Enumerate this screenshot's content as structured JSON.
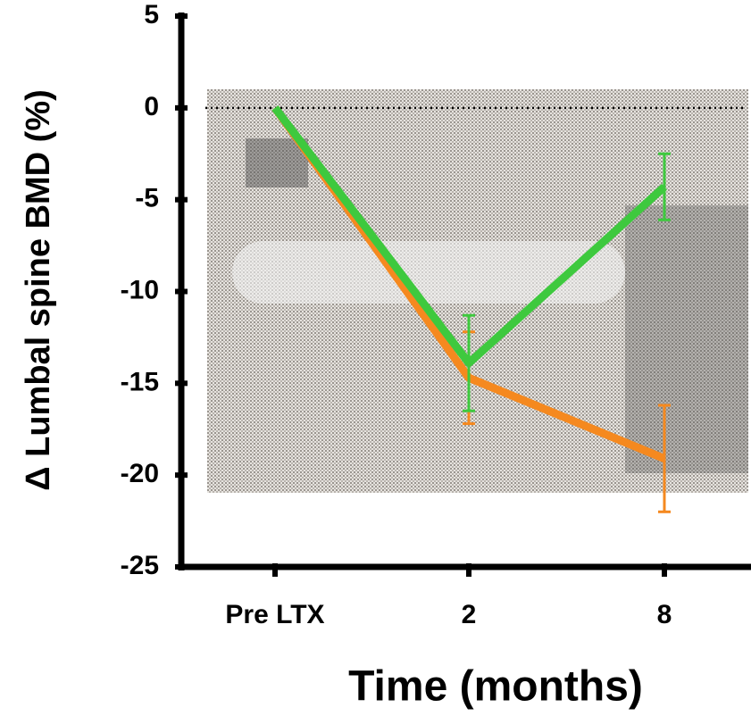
{
  "chart_data": {
    "type": "line",
    "x_label": "Time (months)",
    "y_label": "Δ Lumbal spine BMD (%)",
    "categories": [
      "Pre LTX",
      "2",
      "8"
    ],
    "series": [
      {
        "color": "#f5891f",
        "values": [
          0,
          -14.7,
          -19.1
        ],
        "errors": [
          null,
          2.5,
          2.9
        ]
      },
      {
        "color": "#3ec93e",
        "values": [
          0,
          -13.9,
          -4.3
        ],
        "errors": [
          null,
          2.6,
          1.8
        ]
      }
    ],
    "ylim": [
      -25,
      5
    ],
    "yticks": [
      -25,
      -20,
      -15,
      -10,
      -5,
      0,
      5
    ],
    "reference_line": 0
  }
}
